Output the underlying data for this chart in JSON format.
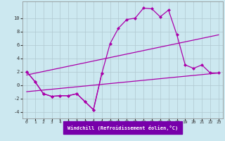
{
  "title": "",
  "xlabel": "Windchill (Refroidissement éolien,°C)",
  "background_color": "#cce8f0",
  "line_color": "#aa00aa",
  "grid_color": "#b0c8d0",
  "xlim": [
    -0.5,
    23.5
  ],
  "ylim": [
    -5,
    12.5
  ],
  "yticks": [
    -4,
    -2,
    0,
    2,
    4,
    6,
    8,
    10
  ],
  "xticks": [
    0,
    1,
    2,
    3,
    4,
    5,
    6,
    7,
    8,
    9,
    10,
    11,
    12,
    13,
    14,
    15,
    16,
    17,
    18,
    19,
    20,
    21,
    22,
    23
  ],
  "smooth_line1_x": [
    0,
    23
  ],
  "smooth_line1_y": [
    1.5,
    7.5
  ],
  "smooth_line2_x": [
    0,
    23
  ],
  "smooth_line2_y": [
    -1.0,
    1.8
  ],
  "jagged1_x": [
    0,
    1,
    2,
    3,
    4,
    5,
    6,
    7,
    8,
    9,
    10,
    11,
    12,
    13,
    14,
    15,
    16,
    17,
    18,
    19,
    20,
    21,
    22,
    23
  ],
  "jagged1_y": [
    2.0,
    0.5,
    -1.3,
    -1.7,
    -1.6,
    -1.6,
    -1.3,
    -2.5,
    -3.7,
    1.7,
    6.2,
    8.5,
    9.8,
    10.0,
    11.5,
    11.4,
    10.2,
    11.2,
    7.5,
    3.0,
    2.5,
    3.0,
    1.8,
    1.8
  ],
  "jagged2_x": [
    0,
    1,
    2,
    3,
    4,
    5,
    6,
    7,
    8,
    9
  ],
  "jagged2_y": [
    2.0,
    0.5,
    -1.3,
    -1.7,
    -1.6,
    -1.6,
    -1.3,
    -2.5,
    -3.7,
    1.7
  ],
  "xlabel_bg": "#7700aa",
  "xlabel_color": "#ffffff",
  "tick_color": "#333333"
}
